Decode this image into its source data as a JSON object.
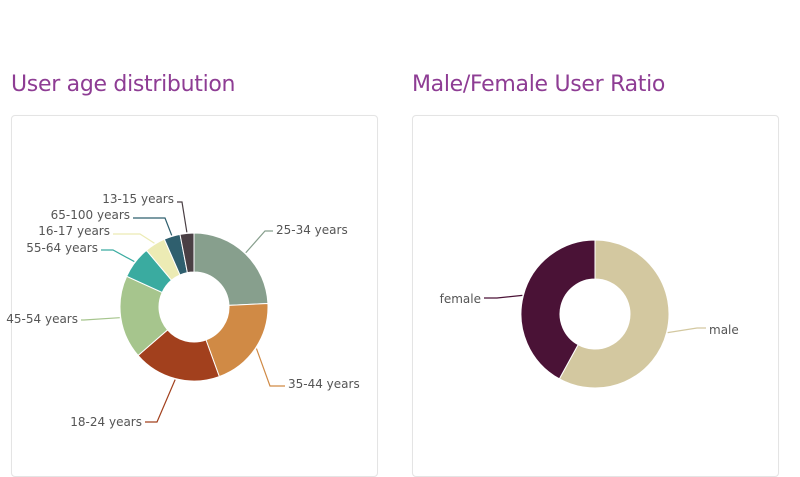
{
  "chart_data": [
    {
      "type": "pie",
      "variant": "donut",
      "title": "User age distribution",
      "slices": [
        {
          "label": "25-34 years",
          "value": 24.0,
          "color": "#879f8d"
        },
        {
          "label": "35-44 years",
          "value": 20.0,
          "color": "#d08a45"
        },
        {
          "label": "18-24 years",
          "value": 19.0,
          "color": "#a2401d"
        },
        {
          "label": "45-54 years",
          "value": 18.0,
          "color": "#a6c58d"
        },
        {
          "label": "55-64 years",
          "value": 7.0,
          "color": "#3aaba0"
        },
        {
          "label": "16-17 years",
          "value": 4.5,
          "color": "#ecebb4"
        },
        {
          "label": "65-100 years",
          "value": 3.5,
          "color": "#2f5f6e"
        },
        {
          "label": "13-15 years",
          "value": 3.0,
          "color": "#4a3f44"
        }
      ]
    },
    {
      "type": "pie",
      "variant": "donut",
      "title": "Male/Female User Ratio",
      "slices": [
        {
          "label": "male",
          "value": 58.0,
          "color": "#d3c8a0"
        },
        {
          "label": "female",
          "value": 42.0,
          "color": "#4a1236"
        }
      ]
    }
  ]
}
